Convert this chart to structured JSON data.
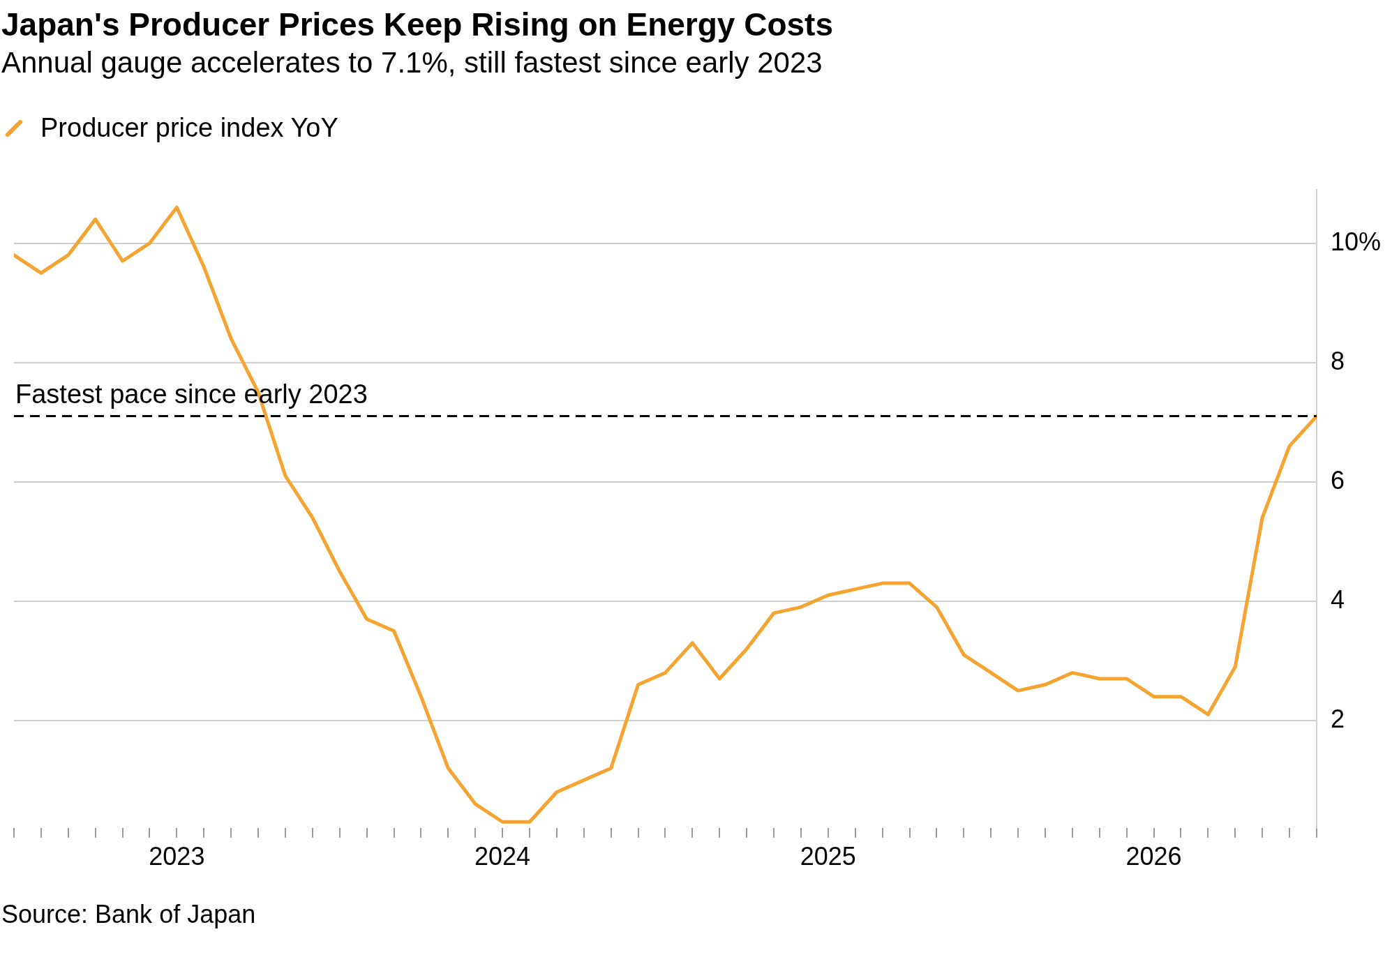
{
  "chart_data": {
    "type": "line",
    "title": "Japan's Producer Prices Keep Rising on Energy Costs",
    "subtitle": "Annual gauge accelerates to 7.1%, still fastest since early 2023",
    "x": [
      "2022-07",
      "2022-08",
      "2022-09",
      "2022-10",
      "2022-11",
      "2022-12",
      "2023-01",
      "2023-02",
      "2023-03",
      "2023-04",
      "2023-05",
      "2023-06",
      "2023-07",
      "2023-08",
      "2023-09",
      "2023-10",
      "2023-11",
      "2023-12",
      "2024-01",
      "2024-02",
      "2024-03",
      "2024-04",
      "2024-05",
      "2024-06",
      "2024-07",
      "2024-08",
      "2024-09",
      "2024-10",
      "2024-11",
      "2024-12",
      "2025-01",
      "2025-02",
      "2025-03",
      "2025-04",
      "2025-05",
      "2025-06",
      "2025-07",
      "2025-08",
      "2025-09",
      "2025-10",
      "2025-11",
      "2025-12",
      "2026-01",
      "2026-02",
      "2026-03",
      "2026-04",
      "2026-05",
      "2026-06",
      "2026-07"
    ],
    "series": [
      {
        "name": "Producer price index YoY",
        "color": "#f5a431",
        "values": [
          9.8,
          9.5,
          9.8,
          10.4,
          9.7,
          10.0,
          10.6,
          9.6,
          8.4,
          7.5,
          6.1,
          5.4,
          4.5,
          3.7,
          3.5,
          2.4,
          1.2,
          0.6,
          0.3,
          0.3,
          0.8,
          1.0,
          1.2,
          2.6,
          2.8,
          3.3,
          2.7,
          3.2,
          3.8,
          3.9,
          4.1,
          4.2,
          4.3,
          4.3,
          3.9,
          3.1,
          2.8,
          2.5,
          2.6,
          2.8,
          2.7,
          2.7,
          2.4,
          2.4,
          2.1,
          2.9,
          5.4,
          6.6,
          7.1
        ]
      }
    ],
    "xlim": [
      "2022-07",
      "2026-07"
    ],
    "xticks": [
      {
        "value": "2022-07",
        "label": null
      },
      {
        "value": "2022-08",
        "label": null
      },
      {
        "value": "2022-09",
        "label": null
      },
      {
        "value": "2022-10",
        "label": null
      },
      {
        "value": "2022-11",
        "label": null
      },
      {
        "value": "2022-12",
        "label": null
      },
      {
        "value": "2023-01",
        "label": "2023"
      },
      {
        "value": "2023-02",
        "label": null
      },
      {
        "value": "2023-03",
        "label": null
      },
      {
        "value": "2023-04",
        "label": null
      },
      {
        "value": "2023-05",
        "label": null
      },
      {
        "value": "2023-06",
        "label": null
      },
      {
        "value": "2023-07",
        "label": null
      },
      {
        "value": "2023-08",
        "label": null
      },
      {
        "value": "2023-09",
        "label": null
      },
      {
        "value": "2023-10",
        "label": null
      },
      {
        "value": "2023-11",
        "label": null
      },
      {
        "value": "2023-12",
        "label": null
      },
      {
        "value": "2024-01",
        "label": "2024"
      },
      {
        "value": "2024-02",
        "label": null
      },
      {
        "value": "2024-03",
        "label": null
      },
      {
        "value": "2024-04",
        "label": null
      },
      {
        "value": "2024-05",
        "label": null
      },
      {
        "value": "2024-06",
        "label": null
      },
      {
        "value": "2024-07",
        "label": null
      },
      {
        "value": "2024-08",
        "label": null
      },
      {
        "value": "2024-09",
        "label": null
      },
      {
        "value": "2024-10",
        "label": null
      },
      {
        "value": "2024-11",
        "label": null
      },
      {
        "value": "2024-12",
        "label": null
      },
      {
        "value": "2025-01",
        "label": "2025"
      },
      {
        "value": "2025-02",
        "label": null
      },
      {
        "value": "2025-03",
        "label": null
      },
      {
        "value": "2025-04",
        "label": null
      },
      {
        "value": "2025-05",
        "label": null
      },
      {
        "value": "2025-06",
        "label": null
      },
      {
        "value": "2025-07",
        "label": null
      },
      {
        "value": "2025-08",
        "label": null
      },
      {
        "value": "2025-09",
        "label": null
      },
      {
        "value": "2025-10",
        "label": null
      },
      {
        "value": "2025-11",
        "label": null
      },
      {
        "value": "2025-12",
        "label": null
      },
      {
        "value": "2026-01",
        "label": "2026"
      },
      {
        "value": "2026-02",
        "label": null
      },
      {
        "value": "2026-03",
        "label": null
      },
      {
        "value": "2026-04",
        "label": null
      },
      {
        "value": "2026-05",
        "label": null
      },
      {
        "value": "2026-06",
        "label": null
      },
      {
        "value": "2026-07",
        "label": null
      }
    ],
    "ylim": [
      0.2,
      10.9
    ],
    "yticks": [
      2,
      4,
      6,
      8,
      {
        "value": 10,
        "label": "10%"
      }
    ],
    "grid": "y",
    "legend": "top left",
    "ref_lines": [
      {
        "axis": "y",
        "value": 7.1,
        "label": "Fastest pace since early 2023",
        "color": "#000000",
        "line_style": "dashed"
      }
    ],
    "annotations": [
      "Source: Bank of Japan"
    ]
  }
}
